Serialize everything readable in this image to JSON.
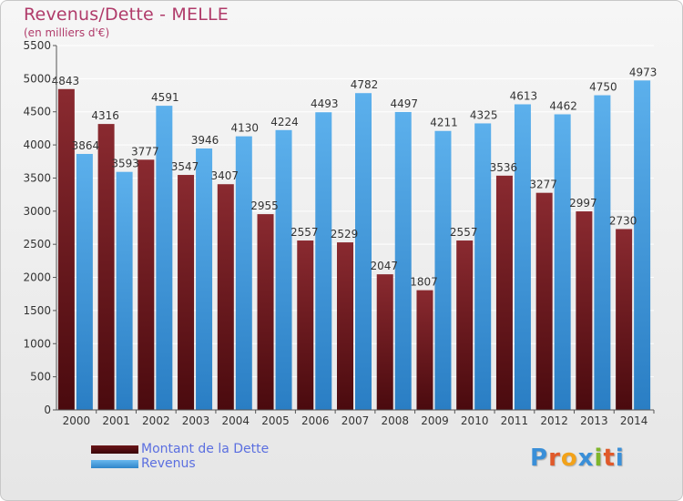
{
  "title": "Revenus/Dette - MELLE",
  "subtitle": "(en milliers d'€)",
  "logo_text": "Proxiti",
  "colors": {
    "debt": "#7a1f24",
    "revenue": "#4aa0e0",
    "title": "#b03b6a",
    "legend_text": "#5b6fe0"
  },
  "legend": [
    {
      "label": "Montant de la Dette",
      "series": "debt"
    },
    {
      "label": "Revenus",
      "series": "revenue"
    }
  ],
  "chart_data": {
    "type": "bar",
    "title": "Revenus/Dette - MELLE",
    "subtitle": "(en milliers d'€)",
    "categories": [
      "2000",
      "2001",
      "2002",
      "2003",
      "2004",
      "2005",
      "2006",
      "2007",
      "2008",
      "2009",
      "2010",
      "2011",
      "2012",
      "2013",
      "2014"
    ],
    "series": [
      {
        "name": "Montant de la Dette",
        "values": [
          4843,
          4316,
          3777,
          3547,
          3407,
          2955,
          2557,
          2529,
          2047,
          1807,
          2557,
          3536,
          3277,
          2997,
          2730
        ],
        "labels": [
          "4843",
          "4316",
          "3777",
          "3547",
          "3407",
          "2955",
          "2557",
          "2529",
          "2047",
          "1807",
          "2557",
          "3536",
          "3277",
          "2997",
          "2730"
        ]
      },
      {
        "name": "Revenus",
        "values": [
          3864,
          3593,
          4591,
          3946,
          4130,
          4224,
          4493,
          4782,
          4497,
          4211,
          4325,
          4613,
          4462,
          4750,
          4973
        ],
        "labels": [
          "3864",
          "3593",
          "4591",
          "3946",
          "4130",
          "4224",
          "4493",
          "4782",
          "4497",
          "4211",
          "4325",
          "4613",
          "4462",
          "4750",
          "4973"
        ]
      }
    ],
    "ylim": [
      0,
      5500
    ],
    "yticks": [
      0,
      500,
      1000,
      1500,
      2000,
      2500,
      3000,
      3500,
      4000,
      4500,
      5000,
      5500
    ],
    "grid": true,
    "legend_position": "bottom-left"
  }
}
